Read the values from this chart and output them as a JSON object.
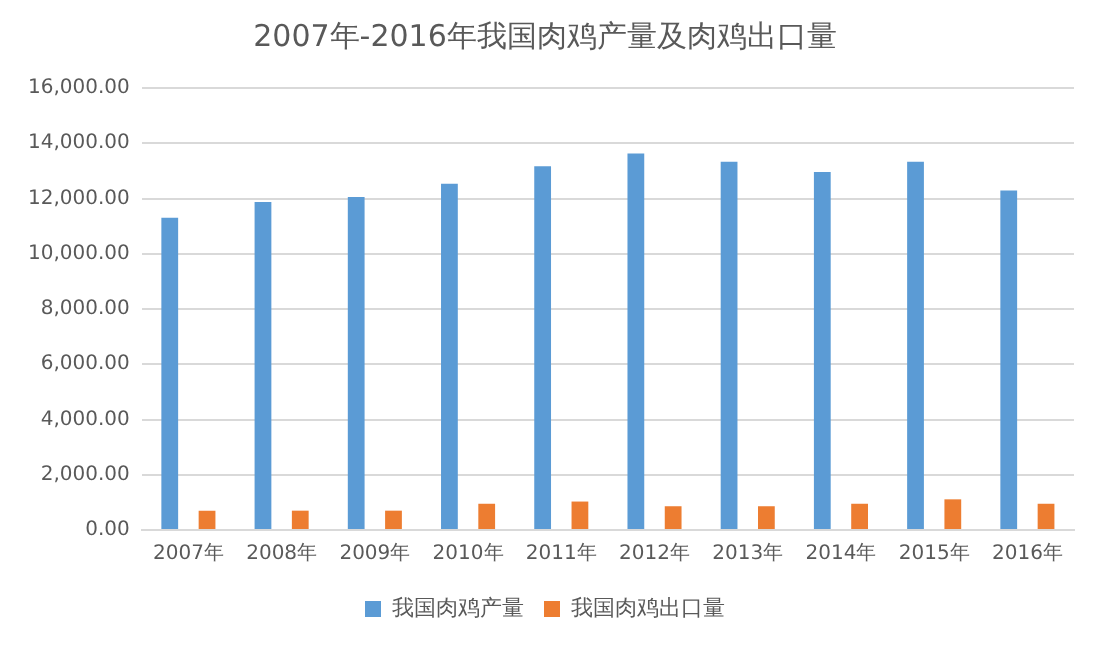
{
  "chart_data": {
    "type": "bar",
    "title": "2007年-2016年我国肉鸡产量及肉鸡出口量",
    "categories": [
      "2007年",
      "2008年",
      "2009年",
      "2010年",
      "2011年",
      "2012年",
      "2013年",
      "2014年",
      "2015年",
      "2016年"
    ],
    "series": [
      {
        "name": "我国肉鸡产量",
        "color": "#5b9bd5",
        "values": [
          11300,
          11870,
          12050,
          12530,
          13170,
          13630,
          13330,
          12960,
          13330,
          12290
        ]
      },
      {
        "name": "我国肉鸡出口量",
        "color": "#ed7d31",
        "values": [
          700,
          700,
          700,
          950,
          1030,
          860,
          860,
          950,
          1110,
          950
        ]
      }
    ],
    "ylim": [
      0,
      16000
    ],
    "yticks": [
      {
        "value": 0,
        "label": "0.00"
      },
      {
        "value": 2000,
        "label": "2,000.00"
      },
      {
        "value": 4000,
        "label": "4,000.00"
      },
      {
        "value": 6000,
        "label": "6,000.00"
      },
      {
        "value": 8000,
        "label": "8,000.00"
      },
      {
        "value": 10000,
        "label": "10,000.00"
      },
      {
        "value": 12000,
        "label": "12,000.00"
      },
      {
        "value": 14000,
        "label": "14,000.00"
      },
      {
        "value": 16000,
        "label": "16,000.00"
      }
    ],
    "grid": "y",
    "legend": "bottom"
  }
}
